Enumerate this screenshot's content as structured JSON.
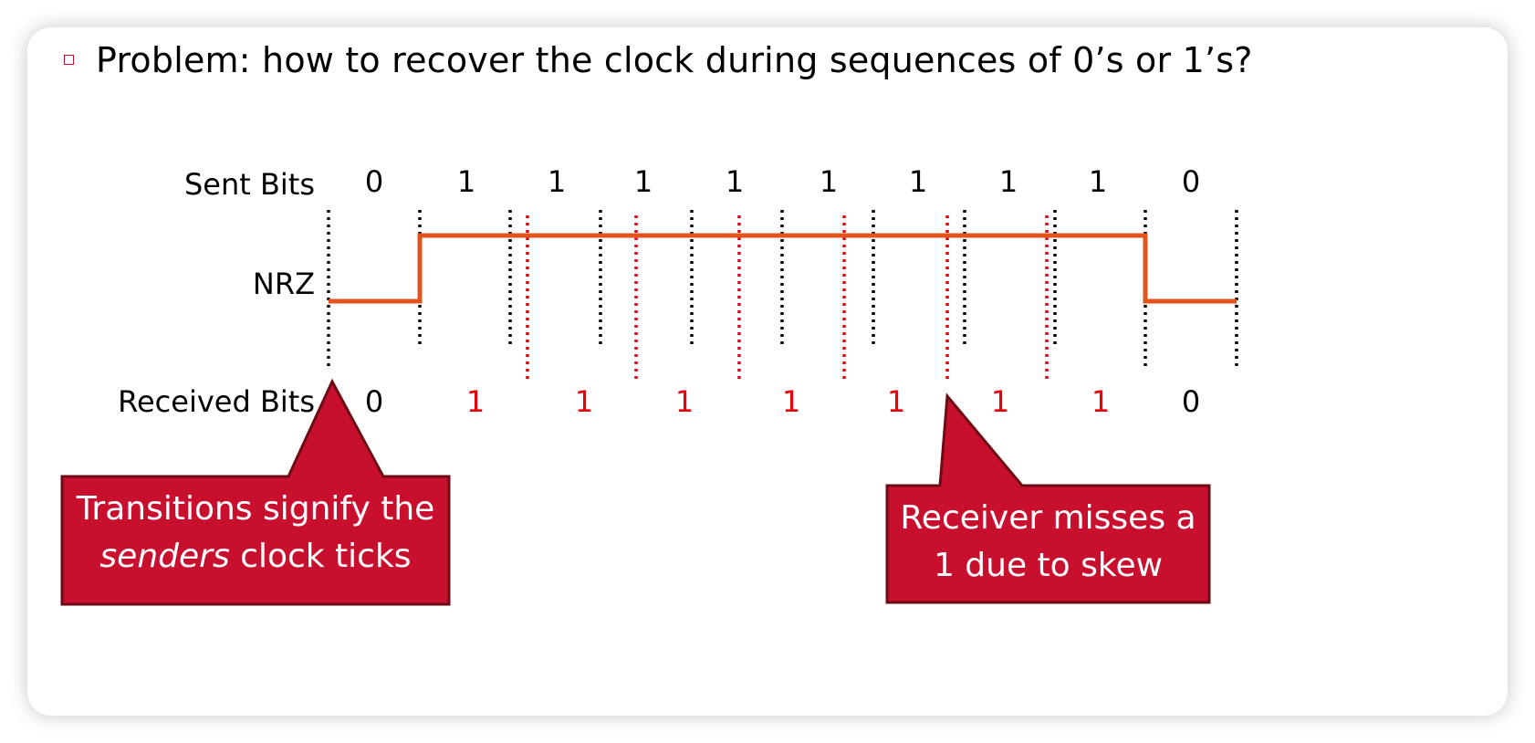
{
  "heading": {
    "text": "Problem: how to recover the clock during sequences of 0’s or 1’s?"
  },
  "row_labels": {
    "sent": "Sent Bits",
    "nrz": "NRZ",
    "received": "Received Bits"
  },
  "sent_bits": [
    "0",
    "1",
    "1",
    "1",
    "1",
    "1",
    "1",
    "1",
    "1",
    "0"
  ],
  "received_bits": [
    {
      "text": "0",
      "color": "#000000"
    },
    {
      "text": "1",
      "color": "#e8000b"
    },
    {
      "text": "1",
      "color": "#e8000b"
    },
    {
      "text": "1",
      "color": "#e8000b"
    },
    {
      "text": "1",
      "color": "#e8000b"
    },
    {
      "text": "1",
      "color": "#e8000b"
    },
    {
      "text": "1",
      "color": "#e8000b"
    },
    {
      "text": "1",
      "color": "#e8000b"
    },
    {
      "text": "0",
      "color": "#000000"
    }
  ],
  "nrz_levels": [
    0,
    1,
    1,
    1,
    1,
    1,
    1,
    1,
    1,
    0
  ],
  "callouts": {
    "left": {
      "line1": "Transitions signify the",
      "line2_italic": "senders",
      "line2_rest": " clock ticks"
    },
    "right": {
      "line1": "Receiver misses a",
      "line2": "1 due to skew"
    }
  },
  "colors": {
    "signal": "#e2541c",
    "sender_clock": "#000000",
    "receiver_clock": "#e8000b",
    "callout_fill": "#c8102e",
    "callout_border": "#6e0a14",
    "bullet": "#c8102e"
  }
}
